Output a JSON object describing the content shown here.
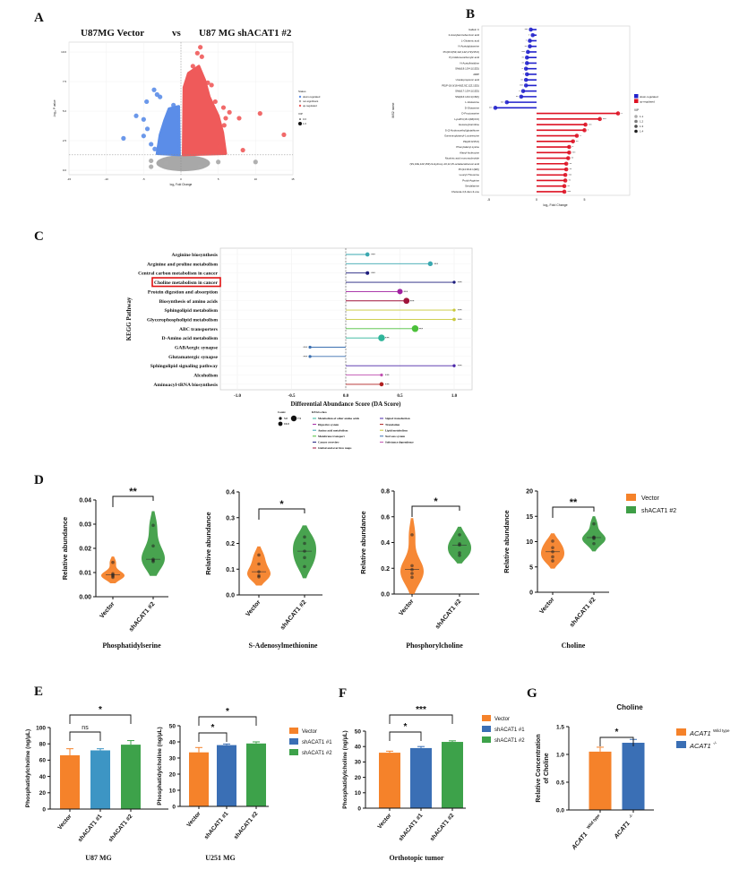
{
  "figure": {
    "panel_labels": [
      "A",
      "B",
      "C",
      "D",
      "E",
      "F",
      "G"
    ]
  },
  "chart_data": [
    {
      "panel": "A",
      "type": "scatter",
      "title_left": "U87MG Vector",
      "title_vs": "vs",
      "title_right": "U87 MG shACAT1 #2",
      "xlabel": "log₂ Fold Change",
      "ylabel": "-log₁₀ P value",
      "xlim": [
        -15,
        15
      ],
      "ylim": [
        0,
        10.5
      ],
      "xticks": [
        "-15",
        "-10",
        "-5",
        "0",
        "5",
        "10",
        "15"
      ],
      "yticks": [
        "0.0",
        "2.5",
        "5.0",
        "7.5",
        "10.0"
      ],
      "threshold_y": 1.3,
      "grid": true,
      "colors": {
        "down-regulated": "#5b8de8",
        "not-significant": "#a8a8a8",
        "up-regulated": "#ef5a5a"
      },
      "legend": {
        "status_title": "Status",
        "status_items": [
          "down-regulated",
          "not-significant",
          "up-regulated"
        ],
        "vip_title": "VIP",
        "vip_items": [
          "0.0",
          "1.0"
        ],
        "placement": "right"
      },
      "points": [
        {
          "x": -7.7,
          "y": 2.7,
          "status": "down-regulated"
        },
        {
          "x": -3.6,
          "y": 6.8,
          "status": "down-regulated"
        },
        {
          "x": -3.2,
          "y": 6.4,
          "status": "down-regulated"
        },
        {
          "x": -2.8,
          "y": 6.2,
          "status": "down-regulated"
        },
        {
          "x": -4.6,
          "y": 5.8,
          "status": "down-regulated"
        },
        {
          "x": -1.0,
          "y": 5.5,
          "status": "down-regulated"
        },
        {
          "x": -6.0,
          "y": 4.6,
          "status": "down-regulated"
        },
        {
          "x": -5.0,
          "y": 4.3,
          "status": "down-regulated"
        },
        {
          "x": -4.5,
          "y": 3.5,
          "status": "down-regulated"
        },
        {
          "x": -5.0,
          "y": 2.9,
          "status": "down-regulated"
        },
        {
          "x": -4.0,
          "y": 2.2,
          "status": "down-regulated"
        },
        {
          "x": -3.5,
          "y": 1.8,
          "status": "down-regulated"
        },
        {
          "x": 2.6,
          "y": 10.4,
          "status": "up-regulated"
        },
        {
          "x": 2.2,
          "y": 9.9,
          "status": "up-regulated"
        },
        {
          "x": 2.8,
          "y": 9.6,
          "status": "up-regulated"
        },
        {
          "x": 1.6,
          "y": 8.8,
          "status": "up-regulated"
        },
        {
          "x": 2.3,
          "y": 8.5,
          "status": "up-regulated"
        },
        {
          "x": 3.6,
          "y": 7.4,
          "status": "up-regulated"
        },
        {
          "x": 4.1,
          "y": 7.2,
          "status": "up-regulated"
        },
        {
          "x": 5.7,
          "y": 5.3,
          "status": "up-regulated"
        },
        {
          "x": 4.6,
          "y": 5.8,
          "status": "up-regulated"
        },
        {
          "x": 6.5,
          "y": 4.9,
          "status": "up-regulated"
        },
        {
          "x": 7.8,
          "y": 4.4,
          "status": "up-regulated"
        },
        {
          "x": 6.0,
          "y": 4.4,
          "status": "up-regulated"
        },
        {
          "x": 5.8,
          "y": 3.8,
          "status": "up-regulated"
        },
        {
          "x": 10.6,
          "y": 4.8,
          "status": "up-regulated"
        },
        {
          "x": 13.8,
          "y": 3.0,
          "status": "up-regulated"
        },
        {
          "x": 8.3,
          "y": 1.7,
          "status": "up-regulated"
        },
        {
          "x": 5.2,
          "y": 2.0,
          "status": "up-regulated"
        },
        {
          "x": 4.5,
          "y": 1.6,
          "status": "up-regulated"
        },
        {
          "x": -4.0,
          "y": 0.8,
          "status": "not-significant"
        },
        {
          "x": -4.0,
          "y": 0.3,
          "status": "not-significant"
        },
        {
          "x": 10.0,
          "y": 0.7,
          "status": "not-significant"
        },
        {
          "x": 5.0,
          "y": 0.7,
          "status": "not-significant"
        },
        {
          "x": -2.0,
          "y": 0.6,
          "status": "not-significant"
        },
        {
          "x": 2.5,
          "y": 0.3,
          "status": "not-significant"
        }
      ]
    },
    {
      "panel": "B",
      "type": "bar",
      "orientation": "horizontal",
      "ylabel": "MS2 name",
      "xlabel": "log₂ Fold Change",
      "xlim": [
        -6,
        9.5
      ],
      "xticks": [
        "-5",
        "0",
        "5"
      ],
      "categories": [
        "Gallein C",
        "2-Acetylaminobenzoic acid",
        "L-Glutamic acid",
        "N-Acetylglutamine",
        "PC(20:4(5Z,11Z,14Z,17Z)/15:0)",
        "Pyrrolidonecarboxylic acid",
        "N-Acetylhistidine",
        "SM(d18:1/24:1(15Z))",
        "dIMP",
        "Ureidopropionic acid",
        "PE(P-18:0/18:4(6Z,9Z,12Z,15Z))",
        "SM(d17:1/24:1(15Z))",
        "SM(d16:1/24:1(15Z))",
        "L-Glutamine",
        "D-Glutamine",
        "D-Fructosazine",
        "LysoPC(16:1(9Z)/0:0)",
        "Hexanoylcarnitine",
        "S-(2-Hydroxyethyl)glutathione",
        "Gamma-glutamyl-L-putrescine",
        "PE(20:0/15:0)",
        "Phenylalanyl-Lysine",
        "Alanyl-Isoleucine",
        "Nicotinic acid mononucleotide",
        "(9S,10E,12Z,15Z)-9-Hydroxy-10,12,15-octadecatrienoic acid",
        "PC(14:0/14:1(9Z))",
        "Leucyl-Threonine",
        "Prolyl-Arginine",
        "Serylalanine",
        "Cholesta-4,6-dien-3-one"
      ],
      "values": [
        -0.6,
        -0.4,
        -0.7,
        -0.7,
        -0.9,
        -1.0,
        -1.0,
        -1.1,
        -1.0,
        -1.1,
        -1.1,
        -1.4,
        -1.6,
        -3.1,
        -4.3,
        8.5,
        6.6,
        5.1,
        5.0,
        4.2,
        3.8,
        3.4,
        3.4,
        3.3,
        3.1,
        3.1,
        3.0,
        3.0,
        2.9,
        2.9
      ],
      "significance": [
        "***",
        "*",
        "*",
        "**",
        "***",
        "**",
        "**",
        "*",
        "*",
        "**",
        "***",
        "*",
        "**",
        "***",
        "***",
        "*",
        "***",
        "***",
        "*",
        "*",
        "**",
        "*",
        "***",
        "**",
        "**",
        "**",
        "***",
        "**",
        "**",
        "***"
      ],
      "colors": {
        "down-regulated": "#2222cc",
        "up-regulated": "#dd1122"
      },
      "legend": {
        "items": [
          "down-regulated",
          "up-regulated"
        ],
        "vip_title": "VIP",
        "vip_items": [
          "1.1",
          "1.2",
          "1.3",
          "1.4"
        ],
        "placement": "right"
      }
    },
    {
      "panel": "C",
      "type": "bar",
      "orientation": "horizontal",
      "xlabel": "Differential Abundance Score (DA Score)",
      "ylabel": "KEGG Pathway",
      "xlim": [
        -1.1,
        1.15
      ],
      "xticks": [
        "-1.0",
        "-0.5",
        "0.0",
        "0.5",
        "1.0"
      ],
      "grid": true,
      "highlight": "Choline metabolism in cancer",
      "pathways": [
        {
          "name": "Arginine biosynthesis",
          "score": 0.2,
          "count": 5,
          "class": "Amino acid metabolism",
          "sig": "***"
        },
        {
          "name": "Arginine and proline metabolism",
          "score": 0.78,
          "count": 6,
          "class": "Amino acid metabolism",
          "sig": "***"
        },
        {
          "name": "Central carbon metabolism in cancer",
          "score": 0.2,
          "count": 4,
          "class": "Cancer overview",
          "sig": "***"
        },
        {
          "name": "Choline metabolism in cancer",
          "score": 1.0,
          "count": 3,
          "class": "Cancer overview",
          "sig": "***"
        },
        {
          "name": "Protein digestion and absorption",
          "score": 0.5,
          "count": 7,
          "class": "Digestive system",
          "sig": "***"
        },
        {
          "name": "Biosynthesis of amino acids",
          "score": 0.56,
          "count": 8,
          "class": "Global and overview maps",
          "sig": "***"
        },
        {
          "name": "Sphingolipid metabolism",
          "score": 1.0,
          "count": 3,
          "class": "Lipid metabolism",
          "sig": "***"
        },
        {
          "name": "Glycerophospholipid metabolism",
          "score": 1.0,
          "count": 3.5,
          "class": "Lipid metabolism",
          "sig": "***"
        },
        {
          "name": "ABC transporters",
          "score": 0.64,
          "count": 9,
          "class": "Membrane transport",
          "sig": "***"
        },
        {
          "name": "D-Amino acid metabolism",
          "score": 0.33,
          "count": 9,
          "class": "Metabolism of other amino acids",
          "sig": "***"
        },
        {
          "name": "GABAergic synapse",
          "score": -0.33,
          "count": 3,
          "class": "Nervous system",
          "sig": "***"
        },
        {
          "name": "Glutamatergic synapse",
          "score": -0.33,
          "count": 3,
          "class": "Nervous system",
          "sig": "***"
        },
        {
          "name": "Sphingolipid signaling pathway",
          "score": 1.0,
          "count": 3,
          "class": "Signal transduction",
          "sig": "***"
        },
        {
          "name": "Alcoholism",
          "score": 0.33,
          "count": 3,
          "class": "Substance dependence",
          "sig": "***"
        },
        {
          "name": "Aminoacyl-tRNA biosynthesis",
          "score": 0.33,
          "count": 5,
          "class": "Translation",
          "sig": "***"
        }
      ],
      "legend": {
        "count_title": "Count",
        "count_items": [
          "5.0",
          "7.5",
          "10.0"
        ],
        "class_title": "KEGG.class",
        "classes": [
          "Metabolism of other amino acids",
          "Digestive system",
          "Amino acid metabolism",
          "Membrane transport",
          "Cancer overview",
          "Global and overview maps",
          "Signal transduction",
          "Translation",
          "Lipid metabolism",
          "Nervous system",
          "Substance dependence"
        ],
        "placement": "bottom"
      },
      "class_colors": {
        "Metabolism of other amino acids": "#2fb59a",
        "Digestive system": "#a020a0",
        "Amino acid metabolism": "#3aa8b0",
        "Membrane transport": "#4cc03a",
        "Cancer overview": "#1c1c7c",
        "Global and overview maps": "#a0143c",
        "Signal transduction": "#4a26a8",
        "Translation": "#b02020",
        "Lipid metabolism": "#c9c93a",
        "Nervous system": "#3b6fb0",
        "Substance dependence": "#c050b0"
      }
    },
    {
      "panel": "D",
      "type": "violin",
      "title": "Phosphatidylserine",
      "ylabel": "Relative abundance",
      "ylim": [
        0,
        0.04
      ],
      "yticks": [
        "0.00",
        "0.01",
        "0.02",
        "0.03",
        "0.04"
      ],
      "categories": [
        "Vector",
        "shACAT1 #2"
      ],
      "series": [
        {
          "values": [
            0.008,
            0.0085,
            0.009,
            0.0095,
            0.0142
          ]
        },
        {
          "values": [
            0.0145,
            0.015,
            0.0155,
            0.021,
            0.0295
          ]
        }
      ],
      "significance": "**"
    },
    {
      "panel": "D",
      "type": "violin",
      "title": "S-Adenosylmethionine",
      "ylabel": "Relative abundance",
      "ylim": [
        0,
        0.4
      ],
      "yticks": [
        "0.0",
        "0.1",
        "0.2",
        "0.3",
        "0.4"
      ],
      "categories": [
        "Vector",
        "shACAT1 #2"
      ],
      "series": [
        {
          "values": [
            0.07,
            0.075,
            0.09,
            0.12,
            0.155
          ]
        },
        {
          "values": [
            0.11,
            0.145,
            0.17,
            0.2,
            0.225
          ]
        }
      ],
      "significance": "*"
    },
    {
      "panel": "D",
      "type": "violin",
      "title": "Phosphorylcholine",
      "ylabel": "Relative abundance",
      "ylim": [
        0,
        0.8
      ],
      "yticks": [
        "0.0",
        "0.2",
        "0.4",
        "0.6",
        "0.8"
      ],
      "categories": [
        "Vector",
        "shACAT1 #2"
      ],
      "series": [
        {
          "values": [
            0.13,
            0.16,
            0.19,
            0.22,
            0.46
          ]
        },
        {
          "values": [
            0.3,
            0.32,
            0.38,
            0.39,
            0.46
          ]
        }
      ],
      "significance": "*"
    },
    {
      "panel": "D",
      "type": "violin",
      "title": "Choline",
      "ylabel": "Relative abundance",
      "ylim": [
        0,
        20
      ],
      "yticks": [
        "0",
        "5",
        "10",
        "15",
        "20"
      ],
      "categories": [
        "Vector",
        "shACAT1 #2"
      ],
      "series": [
        {
          "values": [
            6.2,
            7.0,
            8.0,
            8.8,
            10.1
          ]
        },
        {
          "values": [
            9.6,
            10.6,
            10.8,
            10.9,
            13.5
          ]
        }
      ],
      "significance": "**",
      "legend": {
        "items": [
          "Vector",
          "shACAT1 #2"
        ],
        "placement": "right"
      }
    },
    {
      "panel": "E",
      "type": "bar",
      "title": "U87 MG",
      "ylabel": "Phosphatidylcholine (ng/μL)",
      "ylim": [
        0,
        100
      ],
      "yticks": [
        "0",
        "20",
        "40",
        "60",
        "80",
        "100"
      ],
      "categories": [
        "Vector",
        "shACAT1 #1",
        "shACAT1 #2"
      ],
      "values": [
        66,
        72,
        79
      ],
      "errors": [
        8,
        2,
        5
      ],
      "colors": [
        "#f5822a",
        "#3d95c4",
        "#3da24a"
      ],
      "comparisons": [
        {
          "from": 0,
          "to": 1,
          "label": "ns"
        },
        {
          "from": 0,
          "to": 2,
          "label": "*"
        }
      ]
    },
    {
      "panel": "E",
      "type": "bar",
      "title": "U251 MG",
      "ylabel": "Phosphatidylcholine (ng/μL)",
      "ylim": [
        0,
        50
      ],
      "yticks": [
        "0",
        "10",
        "20",
        "30",
        "40",
        "50"
      ],
      "categories": [
        "Vector",
        "shACAT1 #1",
        "shACAT1 #2"
      ],
      "values": [
        33.5,
        38,
        39
      ],
      "errors": [
        3,
        0.7,
        1
      ],
      "colors": [
        "#f5822a",
        "#3a6fb5",
        "#3da24a"
      ],
      "comparisons": [
        {
          "from": 0,
          "to": 1,
          "label": "*"
        },
        {
          "from": 0,
          "to": 2,
          "label": "*"
        }
      ],
      "legend": {
        "items": [
          "Vector",
          "shACAT1 #1",
          "shACAT1 #2"
        ],
        "placement": "right"
      }
    },
    {
      "panel": "F",
      "type": "bar",
      "title": "Orthotopic tumor",
      "ylabel": "Phosphatidylcholine (ng/μL)",
      "ylim": [
        0,
        50
      ],
      "yticks": [
        "0",
        "10",
        "20",
        "30",
        "40",
        "50"
      ],
      "categories": [
        "Vector",
        "shACAT1 #1",
        "shACAT1 #2"
      ],
      "values": [
        36,
        39,
        43
      ],
      "errors": [
        1,
        1,
        0.7
      ],
      "colors": [
        "#f5822a",
        "#3a6fb5",
        "#3da24a"
      ],
      "comparisons": [
        {
          "from": 0,
          "to": 1,
          "label": "*"
        },
        {
          "from": 0,
          "to": 2,
          "label": "***"
        }
      ],
      "legend": {
        "items": [
          "Vector",
          "shACAT1 #1",
          "shACAT1 #2"
        ],
        "placement": "right"
      }
    },
    {
      "panel": "G",
      "type": "bar",
      "title": "Choline",
      "ylabel": "Relative Concentration",
      "ylabel2": "of Choline",
      "ylim": [
        0,
        1.5
      ],
      "yticks": [
        "0.0",
        "0.5",
        "1.0",
        "1.5"
      ],
      "categories": [
        {
          "gene": "ACAT1",
          "sup": "Wild type"
        },
        {
          "gene": "ACAT1",
          "sup": "-/-"
        }
      ],
      "values": [
        1.05,
        1.21
      ],
      "errors": [
        0.08,
        0.06
      ],
      "colors": [
        "#f5822a",
        "#3a6fb5"
      ],
      "comparisons": [
        {
          "from": 0,
          "to": 1,
          "label": "*"
        }
      ],
      "legend": {
        "placement": "right"
      }
    }
  ]
}
